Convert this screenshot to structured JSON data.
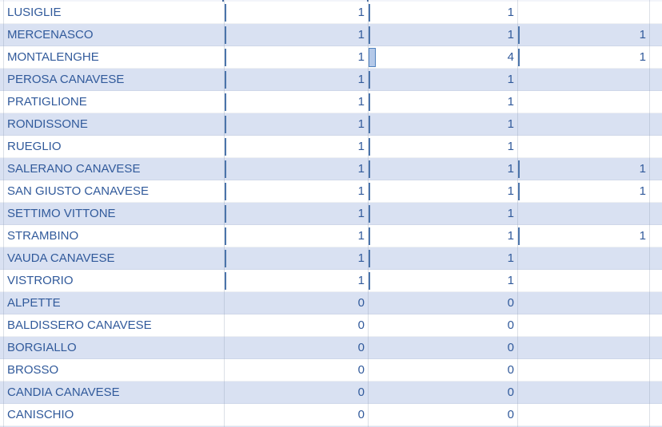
{
  "colors": {
    "band_fill": "#d9e1f2",
    "text": "#315a9b",
    "databar_line": "#4b74aa",
    "databar_fill": "#b4c9e9",
    "databar_border": "#4f81bd"
  },
  "table": {
    "rows": [
      {
        "name": "LUSIGLIE",
        "v1": 1,
        "v2": 1,
        "v3": null
      },
      {
        "name": "MERCENASCO",
        "v1": 1,
        "v2": 1,
        "v3": 1
      },
      {
        "name": "MONTALENGHE",
        "v1": 1,
        "v2": 4,
        "v3": 1
      },
      {
        "name": "PEROSA CANAVESE",
        "v1": 1,
        "v2": 1,
        "v3": null
      },
      {
        "name": "PRATIGLIONE",
        "v1": 1,
        "v2": 1,
        "v3": null
      },
      {
        "name": "RONDISSONE",
        "v1": 1,
        "v2": 1,
        "v3": null
      },
      {
        "name": "RUEGLIO",
        "v1": 1,
        "v2": 1,
        "v3": null
      },
      {
        "name": "SALERANO CANAVESE",
        "v1": 1,
        "v2": 1,
        "v3": 1
      },
      {
        "name": "SAN GIUSTO CANAVESE",
        "v1": 1,
        "v2": 1,
        "v3": 1
      },
      {
        "name": "SETTIMO VITTONE",
        "v1": 1,
        "v2": 1,
        "v3": null
      },
      {
        "name": "STRAMBINO",
        "v1": 1,
        "v2": 1,
        "v3": 1
      },
      {
        "name": "VAUDA CANAVESE",
        "v1": 1,
        "v2": 1,
        "v3": null
      },
      {
        "name": "VISTRORIO",
        "v1": 1,
        "v2": 1,
        "v3": null
      },
      {
        "name": "ALPETTE",
        "v1": 0,
        "v2": 0,
        "v3": null
      },
      {
        "name": "BALDISSERO CANAVESE",
        "v1": 0,
        "v2": 0,
        "v3": null
      },
      {
        "name": "BORGIALLO",
        "v1": 0,
        "v2": 0,
        "v3": null
      },
      {
        "name": "BROSSO",
        "v1": 0,
        "v2": 0,
        "v3": null
      },
      {
        "name": "CANDIA CANAVESE",
        "v1": 0,
        "v2": 0,
        "v3": null
      },
      {
        "name": "CANISCHIO",
        "v1": 0,
        "v2": 0,
        "v3": null
      }
    ]
  }
}
